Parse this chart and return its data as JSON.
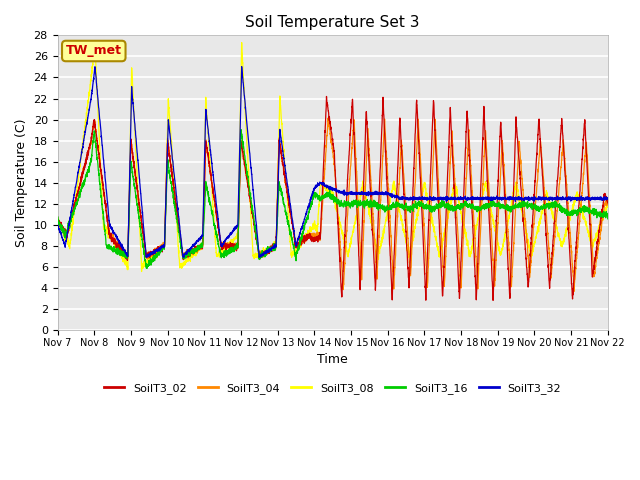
{
  "title": "Soil Temperature Set 3",
  "xlabel": "Time",
  "ylabel": "Soil Temperature (C)",
  "ylim": [
    0,
    28
  ],
  "series_colors": {
    "SoilT3_02": "#cc0000",
    "SoilT3_04": "#ff8800",
    "SoilT3_08": "#ffff00",
    "SoilT3_16": "#00cc00",
    "SoilT3_32": "#0000cc"
  },
  "annotation_text": "TW_met",
  "annotation_color": "#cc0000",
  "annotation_bg": "#ffff99",
  "annotation_border": "#aa8800",
  "x_tick_labels": [
    "Nov 7",
    "Nov 8",
    "Nov 9",
    "Nov 10",
    "Nov 11",
    "Nov 12",
    "Nov 13",
    "Nov 14",
    "Nov 15",
    "Nov 16",
    "Nov 17",
    "Nov 18",
    "Nov 19",
    "Nov 20",
    "Nov 21",
    "Nov 22"
  ],
  "plot_bg": "#e8e8e8",
  "grid_color": "#ffffff",
  "linewidth": 0.9
}
